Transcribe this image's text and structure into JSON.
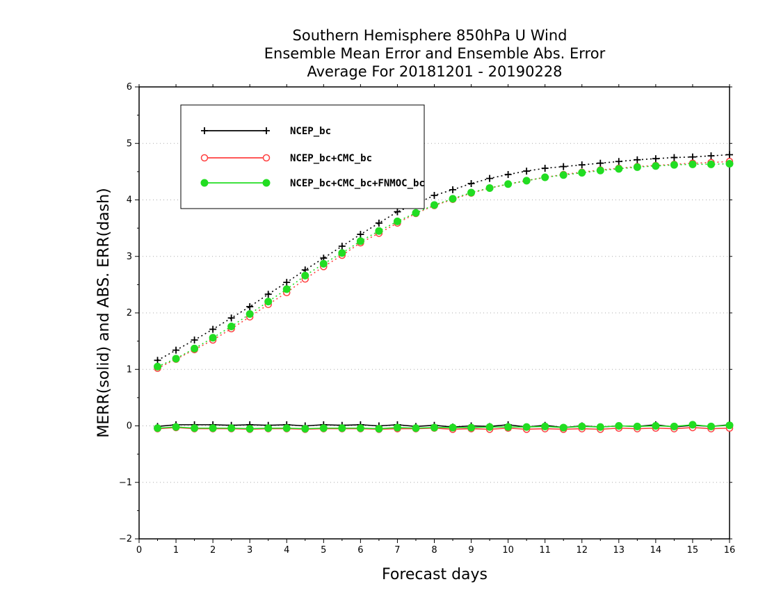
{
  "chart_data": {
    "type": "line",
    "title": "Southern Hemisphere 850hPa U Wind",
    "subtitle_lines": [
      "Ensemble Mean Error and Ensemble Abs. Error",
      "Average For 20181201 - 20190228"
    ],
    "xlabel": "Forecast days",
    "ylabel": "MERR(solid) and ABS. ERR(dash)",
    "xlim": [
      0,
      16
    ],
    "ylim": [
      -2,
      6
    ],
    "x_ticks": [
      "0",
      "1",
      "2",
      "3",
      "4",
      "5",
      "6",
      "7",
      "8",
      "9",
      "10",
      "11",
      "12",
      "13",
      "14",
      "15",
      "16"
    ],
    "y_ticks": [
      "−2",
      "−1",
      "0",
      "1",
      "2",
      "3",
      "4",
      "5",
      "6"
    ],
    "grid": "horizontal dotted",
    "legend_position": "top-left",
    "x": [
      0.5,
      1.0,
      1.5,
      2.0,
      2.5,
      3.0,
      3.5,
      4.0,
      4.5,
      5.0,
      5.5,
      6.0,
      6.5,
      7.0,
      7.5,
      8.0,
      8.5,
      9.0,
      9.5,
      10.0,
      10.5,
      11.0,
      11.5,
      12.0,
      12.5,
      13.0,
      13.5,
      14.0,
      14.5,
      15.0,
      15.5,
      16.0
    ],
    "series": [
      {
        "name": "NCEP_bc",
        "color": "#000000",
        "marker": "plus",
        "merr": [
          -0.01,
          0.02,
          0.02,
          0.02,
          0.01,
          0.02,
          0.01,
          0.02,
          0.0,
          0.02,
          0.01,
          0.02,
          0.0,
          0.02,
          -0.01,
          0.01,
          -0.02,
          0.0,
          -0.01,
          0.02,
          -0.02,
          0.01,
          -0.03,
          0.0,
          -0.02,
          0.0,
          -0.01,
          0.02,
          -0.02,
          0.01,
          -0.01,
          0.02
        ],
        "abs_err": [
          1.16,
          1.34,
          1.52,
          1.71,
          1.91,
          2.11,
          2.33,
          2.54,
          2.76,
          2.97,
          3.18,
          3.39,
          3.59,
          3.79,
          3.93,
          4.08,
          4.18,
          4.29,
          4.38,
          4.45,
          4.51,
          4.56,
          4.59,
          4.62,
          4.65,
          4.68,
          4.71,
          4.73,
          4.75,
          4.76,
          4.78,
          4.8
        ]
      },
      {
        "name": "NCEP_bc+CMC_bc",
        "color": "#ff4040",
        "marker": "open-circle",
        "merr": [
          -0.05,
          -0.03,
          -0.05,
          -0.05,
          -0.05,
          -0.06,
          -0.05,
          -0.05,
          -0.06,
          -0.05,
          -0.05,
          -0.05,
          -0.06,
          -0.05,
          -0.05,
          -0.04,
          -0.06,
          -0.05,
          -0.06,
          -0.04,
          -0.06,
          -0.05,
          -0.06,
          -0.05,
          -0.06,
          -0.04,
          -0.05,
          -0.04,
          -0.05,
          -0.03,
          -0.05,
          -0.04
        ],
        "abs_err": [
          1.02,
          1.18,
          1.35,
          1.52,
          1.72,
          1.93,
          2.15,
          2.36,
          2.6,
          2.82,
          3.02,
          3.24,
          3.41,
          3.59,
          3.76,
          3.9,
          4.01,
          4.12,
          4.21,
          4.28,
          4.34,
          4.4,
          4.45,
          4.49,
          4.53,
          4.56,
          4.59,
          4.61,
          4.63,
          4.65,
          4.66,
          4.68
        ]
      },
      {
        "name": "NCEP_bc+CMC_bc+FNMOC_bc",
        "color": "#22dd22",
        "marker": "filled-circle",
        "merr": [
          -0.04,
          -0.02,
          -0.04,
          -0.04,
          -0.04,
          -0.05,
          -0.04,
          -0.04,
          -0.05,
          -0.04,
          -0.04,
          -0.04,
          -0.05,
          -0.03,
          -0.04,
          -0.03,
          -0.03,
          -0.03,
          -0.02,
          -0.02,
          -0.02,
          -0.01,
          -0.03,
          -0.01,
          -0.02,
          0.0,
          -0.01,
          0.0,
          -0.01,
          0.02,
          -0.01,
          0.01
        ],
        "abs_err": [
          1.05,
          1.19,
          1.37,
          1.56,
          1.76,
          1.98,
          2.2,
          2.42,
          2.66,
          2.87,
          3.06,
          3.27,
          3.45,
          3.62,
          3.77,
          3.91,
          4.02,
          4.13,
          4.21,
          4.28,
          4.34,
          4.4,
          4.44,
          4.48,
          4.52,
          4.55,
          4.58,
          4.6,
          4.62,
          4.63,
          4.63,
          4.64
        ]
      }
    ]
  }
}
